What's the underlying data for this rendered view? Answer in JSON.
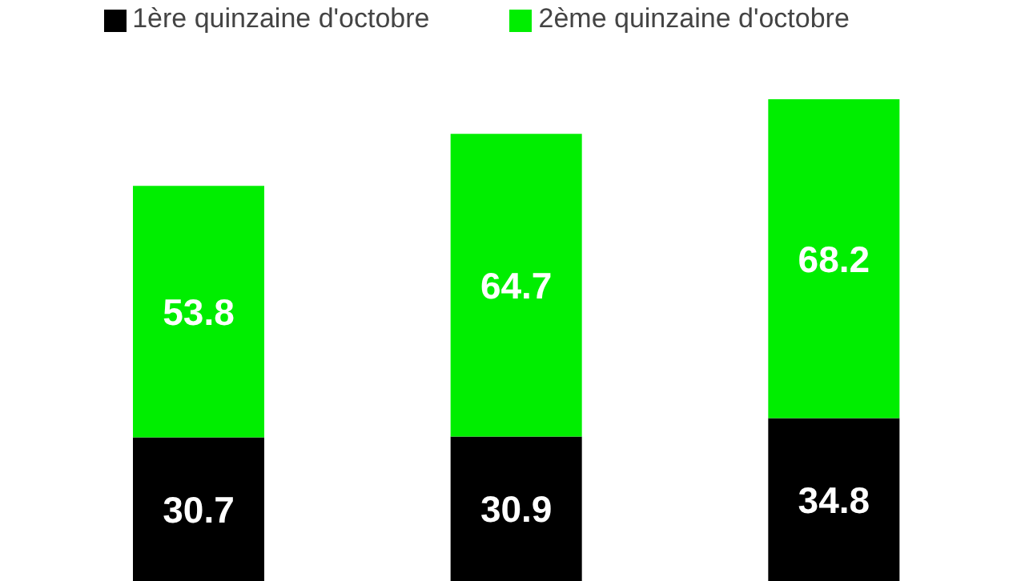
{
  "chart_data": {
    "type": "bar",
    "stacked": true,
    "categories": [
      null,
      null,
      null
    ],
    "data_labels": true,
    "legend": "top",
    "series": [
      {
        "name": "1ère quinzaine d'octobre",
        "color": "#000000",
        "values": [
          30.7,
          30.9,
          34.8
        ]
      },
      {
        "name": "2ème quinzaine d'octobre",
        "color": "#00ee00",
        "values": [
          53.8,
          64.7,
          68.2
        ]
      }
    ]
  }
}
